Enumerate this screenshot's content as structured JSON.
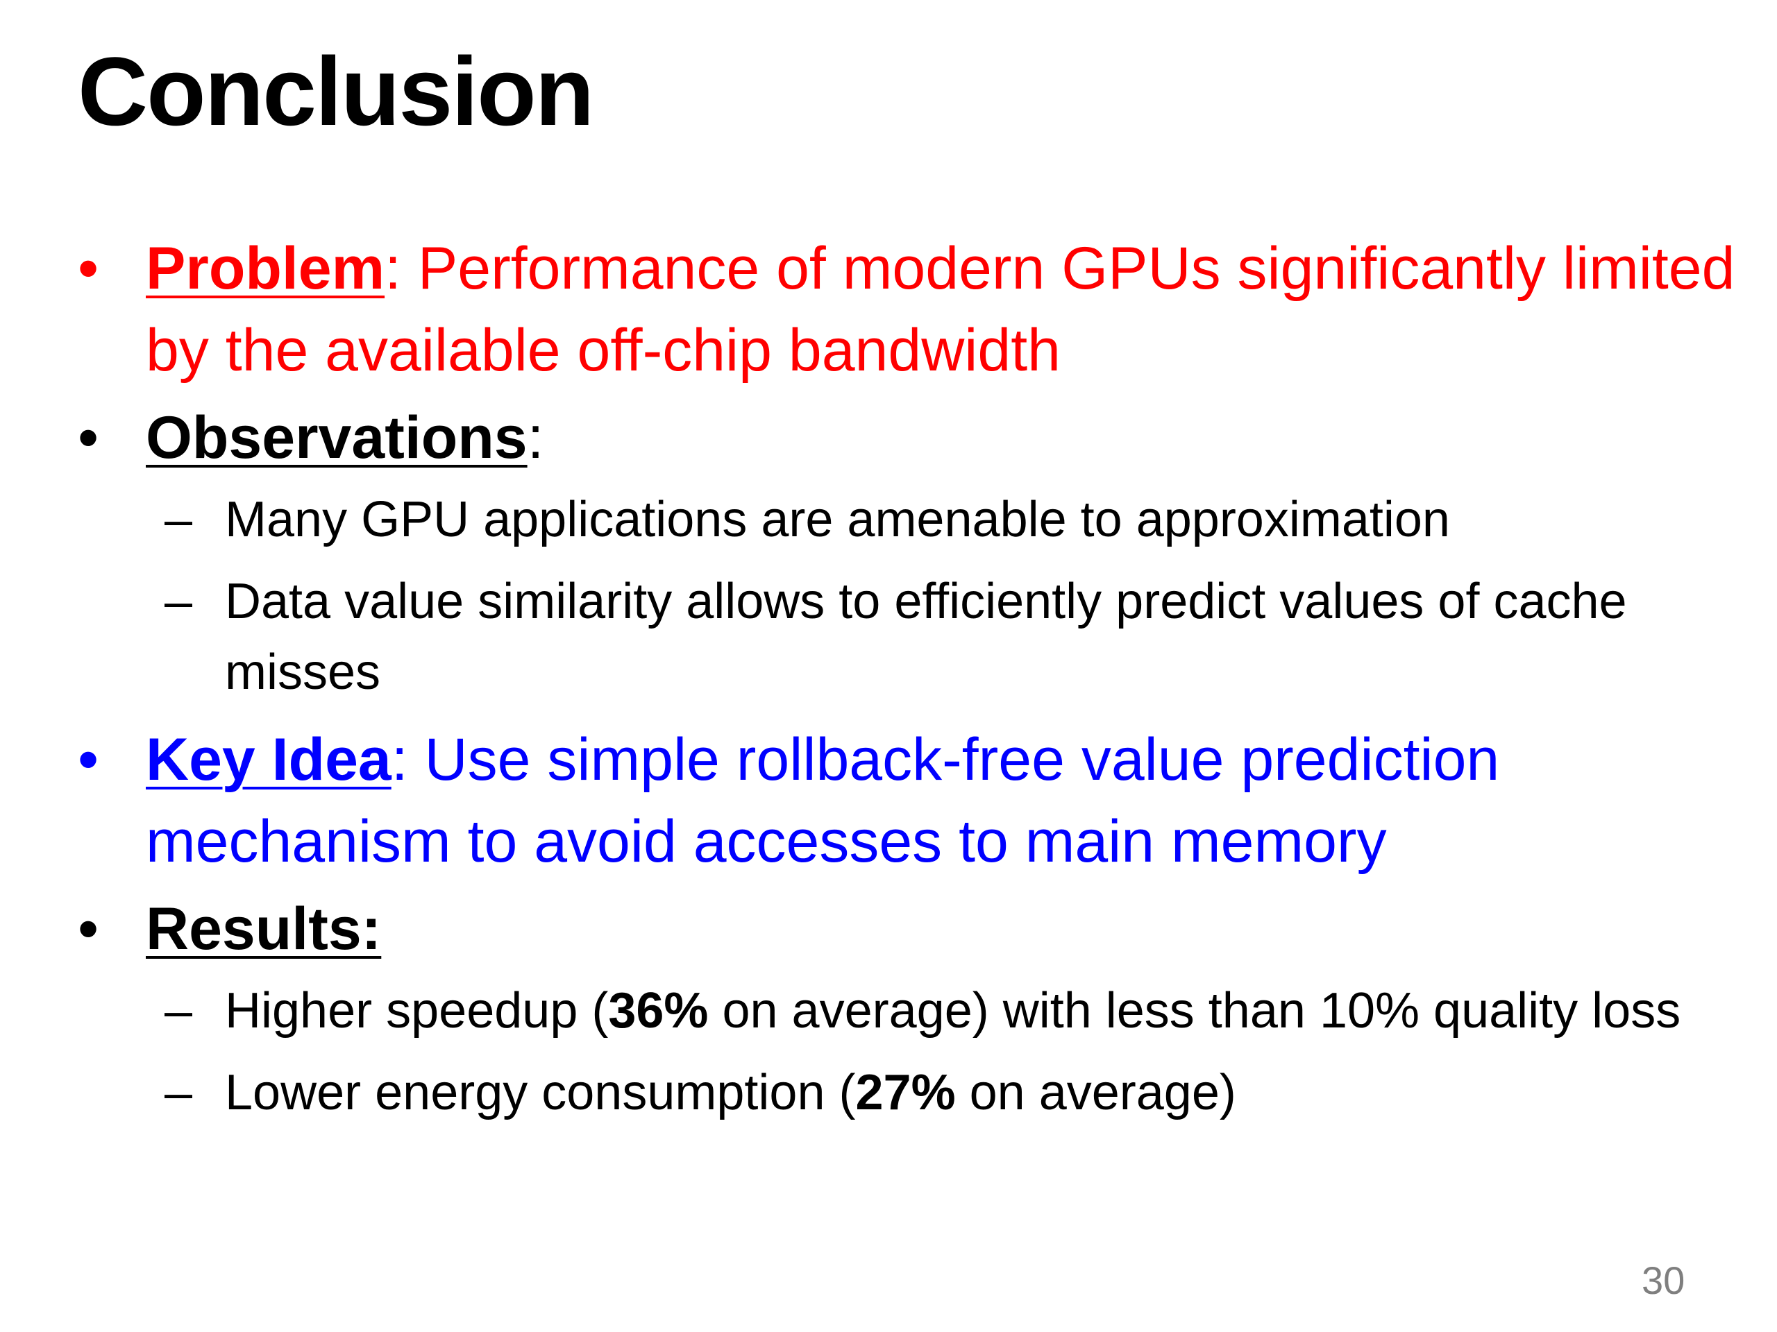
{
  "slide": {
    "title": "Conclusion",
    "bullets": [
      {
        "head": "Problem",
        "sep": ":",
        "text": " Performance of modern GPUs significantly limited by the available off-chip bandwidth",
        "color": "#ff0000"
      },
      {
        "head": "Observations",
        "sep": ":",
        "subs": [
          "Many GPU applications are amenable to approximation",
          "Data value similarity allows to efficiently predict values of cache misses"
        ]
      },
      {
        "head": "Key Idea",
        "sep": ":",
        "text": " Use simple rollback-free value prediction mechanism to avoid accesses to main memory",
        "color": "#0000ff"
      },
      {
        "head": "Results:",
        "subs": [
          {
            "pre": "Higher speedup (",
            "bold": "36%",
            "post": " on average) with less than 10% quality loss"
          },
          {
            "pre": "Lower energy consumption (",
            "bold": "27%",
            "post": " on average)"
          }
        ]
      }
    ],
    "bullet_glyph": "•",
    "dash_glyph": "–",
    "page_number": "30"
  }
}
